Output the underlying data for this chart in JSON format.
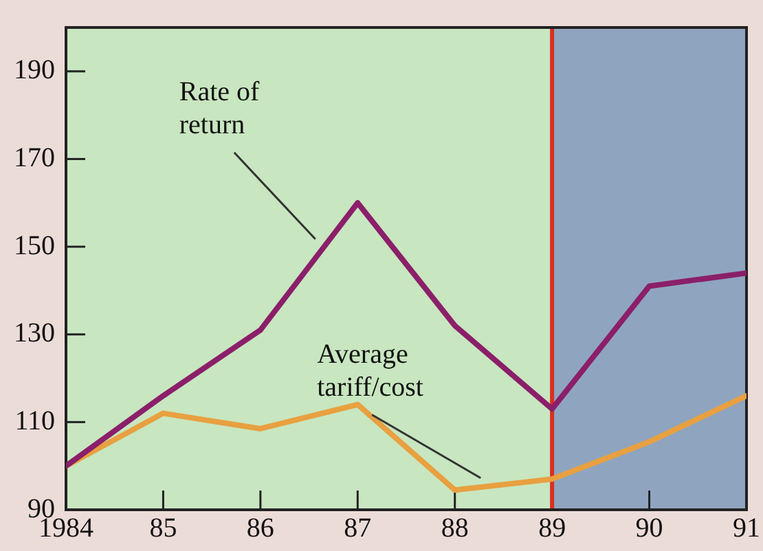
{
  "chart_data": {
    "type": "line",
    "x": [
      1984,
      1985,
      1986,
      1987,
      1988,
      1989,
      1990,
      1991
    ],
    "series": [
      {
        "name": "Rate of return",
        "color": "#8b1f6a",
        "values": [
          100,
          116,
          131,
          160,
          132,
          113,
          141,
          144
        ]
      },
      {
        "name": "Average tariff/cost",
        "color": "#e8a040",
        "values": [
          100,
          112,
          108.5,
          114,
          94.5,
          97,
          105.5,
          116
        ]
      }
    ],
    "xlim": [
      1984,
      1991
    ],
    "xticks": [
      1984,
      {
        "value": 1985,
        "label": "85"
      },
      {
        "value": 1986,
        "label": "86"
      },
      {
        "value": 1987,
        "label": "87"
      },
      {
        "value": 1988,
        "label": "88"
      },
      {
        "value": 1989,
        "label": "89"
      },
      {
        "value": 1990,
        "label": "90"
      },
      {
        "value": 1991,
        "label": "91"
      }
    ],
    "ylim": [
      90,
      200
    ],
    "yticks": [
      90,
      110,
      130,
      150,
      170,
      190
    ],
    "bands": [
      {
        "axis": "x",
        "from": 1984,
        "to": 1989,
        "color": "#c8e6c0"
      },
      {
        "axis": "x",
        "from": 1989,
        "to": 1991,
        "color": "#8fa5bf"
      }
    ],
    "ref_lines": [
      {
        "axis": "x",
        "value": 1989,
        "color": "#d83020"
      }
    ],
    "legend": false,
    "marker": "none",
    "line_style": "solid"
  }
}
